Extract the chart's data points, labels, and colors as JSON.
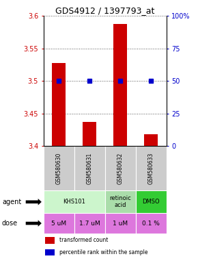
{
  "title": "GDS4912 / 1397793_at",
  "samples": [
    "GSM580630",
    "GSM580631",
    "GSM580632",
    "GSM580633"
  ],
  "bar_values": [
    3.527,
    3.437,
    3.587,
    3.418
  ],
  "dot_percentiles": [
    50,
    50,
    50,
    50
  ],
  "ylim_left": [
    3.4,
    3.6
  ],
  "ylim_right": [
    0,
    100
  ],
  "yticks_left": [
    3.4,
    3.45,
    3.5,
    3.55,
    3.6
  ],
  "ytick_labels_left": [
    "3.4",
    "3.45",
    "3.5",
    "3.55",
    "3.6"
  ],
  "yticks_right": [
    0,
    25,
    50,
    75,
    100
  ],
  "ytick_labels_right": [
    "0",
    "25",
    "50",
    "75",
    "100%"
  ],
  "agent_spans": [
    {
      "start": 0,
      "end": 2,
      "label": "KHS101",
      "color": "#ccf5cc"
    },
    {
      "start": 2,
      "end": 3,
      "label": "retinoic\nacid",
      "color": "#aaddaa"
    },
    {
      "start": 3,
      "end": 4,
      "label": "DMSO",
      "color": "#33cc33"
    }
  ],
  "dose_labels": [
    "5 uM",
    "1.7 uM",
    "1 uM",
    "0.1 %"
  ],
  "dose_color": "#dd77dd",
  "bar_color": "#cc0000",
  "dot_color": "#0000cc",
  "sample_bg": "#cccccc",
  "legend_bar_label": "transformed count",
  "legend_dot_label": "percentile rank within the sample",
  "left_axis_color": "#cc0000",
  "right_axis_color": "#0000cc",
  "grid_linestyle": "dotted",
  "grid_color": "#555555"
}
